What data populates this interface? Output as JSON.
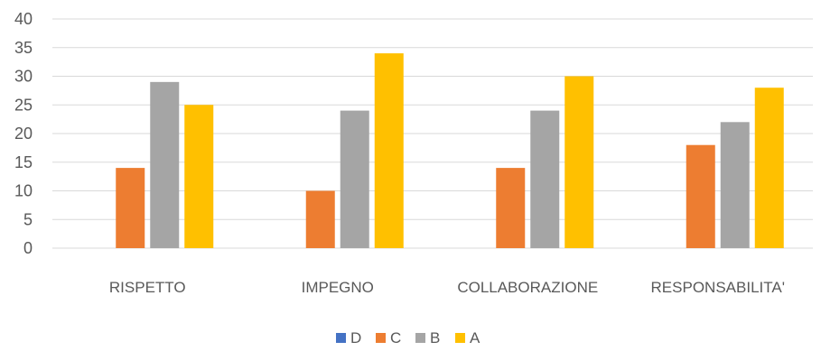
{
  "chart_data": {
    "type": "bar",
    "title": "",
    "xlabel": "",
    "ylabel": "",
    "categories": [
      "RISPETTO",
      "IMPEGNO",
      "COLLABORAZIONE",
      "RESPONSABILITA'"
    ],
    "series": [
      {
        "name": "D",
        "color": "#4472C4",
        "values": [
          0,
          0,
          0,
          0
        ]
      },
      {
        "name": "C",
        "color": "#ED7D31",
        "values": [
          14,
          10,
          14,
          18
        ]
      },
      {
        "name": "B",
        "color": "#A5A5A5",
        "values": [
          29,
          24,
          24,
          22
        ]
      },
      {
        "name": "A",
        "color": "#FFC000",
        "values": [
          25,
          34,
          30,
          28
        ]
      }
    ],
    "ylim": [
      0,
      40
    ],
    "yticks": [
      "0",
      "5",
      "10",
      "15",
      "20",
      "25",
      "30",
      "35",
      "40"
    ],
    "grid": true,
    "legend": "bottom"
  }
}
